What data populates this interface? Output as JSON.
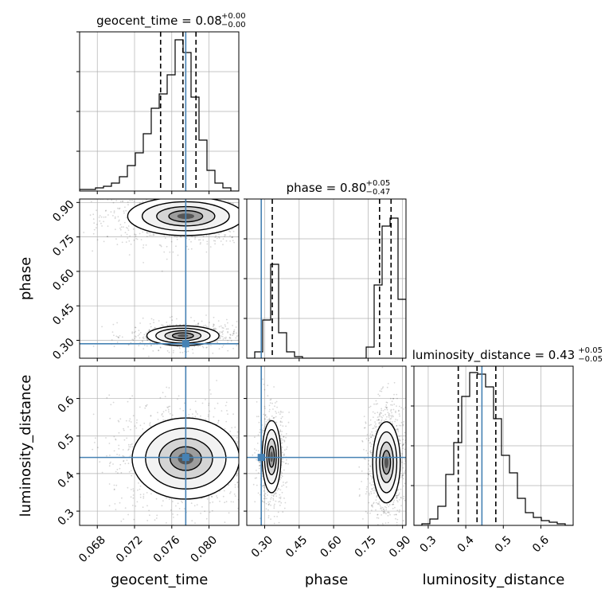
{
  "chart_data": {
    "type": "corner",
    "parameters": [
      "geocent_time",
      "phase",
      "luminosity_distance"
    ],
    "truths": [
      0.0775,
      0.285,
      0.443
    ],
    "truth_color": "#4682b4",
    "axis_ranges": [
      [
        0.0661,
        0.0832
      ],
      [
        0.222,
        0.915
      ],
      [
        0.262,
        0.686
      ]
    ],
    "ticks": {
      "geocent_time": [
        "0.068",
        "0.072",
        "0.076",
        "0.080"
      ],
      "phase": [
        "0.30",
        "0.45",
        "0.60",
        "0.75",
        "0.90"
      ],
      "luminosity_distance": [
        "0.3",
        "0.4",
        "0.5",
        "0.6"
      ]
    },
    "titles": [
      {
        "parameter": "geocent_time",
        "label": "geocent_time = 0.08",
        "plus": "+0.00",
        "minus": "−0.00"
      },
      {
        "parameter": "phase",
        "label": "phase = 0.80",
        "plus": "+0.05",
        "minus": "−0.47"
      },
      {
        "parameter": "luminosity_distance",
        "label": "luminosity_distance = 0.43",
        "plus": "+0.05",
        "minus": "−0.05"
      }
    ],
    "axis_labels": {
      "x": [
        "geocent_time",
        "phase",
        "luminosity_distance"
      ],
      "y": [
        "phase",
        "luminosity_distance"
      ]
    },
    "quantiles": [
      [
        0.0748,
        0.0772,
        0.0786
      ],
      [
        0.333,
        0.8,
        0.85
      ],
      [
        0.38,
        0.43,
        0.48
      ]
    ],
    "histograms": [
      {
        "parameter": "geocent_time",
        "edges_range": [
          0.0661,
          0.0832
        ],
        "bins": 20,
        "counts": [
          0.01,
          0.01,
          0.02,
          0.03,
          0.05,
          0.09,
          0.16,
          0.24,
          0.36,
          0.52,
          0.61,
          0.73,
          0.95,
          0.87,
          0.59,
          0.32,
          0.13,
          0.05,
          0.02,
          0.0
        ]
      },
      {
        "parameter": "phase",
        "edges_range": [
          0.222,
          0.915
        ],
        "bins": 20,
        "counts": [
          0.0,
          0.04,
          0.24,
          0.59,
          0.16,
          0.04,
          0.01,
          0.0,
          0.0,
          0.0,
          0.0,
          0.0,
          0.0,
          0.0,
          0.0,
          0.07,
          0.46,
          0.83,
          0.88,
          0.37
        ]
      },
      {
        "parameter": "luminosity_distance",
        "edges_range": [
          0.262,
          0.686
        ],
        "bins": 20,
        "counts": [
          0.0,
          0.01,
          0.04,
          0.12,
          0.32,
          0.52,
          0.81,
          0.96,
          0.95,
          0.87,
          0.67,
          0.44,
          0.33,
          0.17,
          0.08,
          0.05,
          0.03,
          0.02,
          0.01,
          0.0
        ]
      }
    ],
    "density_modes": [
      {
        "x": "geocent_time",
        "y": "phase",
        "centers": [
          [
            0.0775,
            0.84,
            1.0
          ],
          [
            0.0772,
            0.32,
            0.55
          ]
        ],
        "spread": [
          [
            0.0026,
            0.035
          ],
          [
            0.0017,
            0.018
          ]
        ]
      },
      {
        "x": "geocent_time",
        "y": "luminosity_distance",
        "centers": [
          [
            0.0775,
            0.44,
            1.0
          ]
        ],
        "spread": [
          [
            0.0024,
            0.045
          ]
        ]
      },
      {
        "x": "phase",
        "y": "luminosity_distance",
        "centers": [
          [
            0.83,
            0.43,
            1.0
          ],
          [
            0.33,
            0.445,
            0.6
          ]
        ],
        "spread": [
          [
            0.025,
            0.045
          ],
          [
            0.018,
            0.04
          ]
        ]
      }
    ]
  }
}
